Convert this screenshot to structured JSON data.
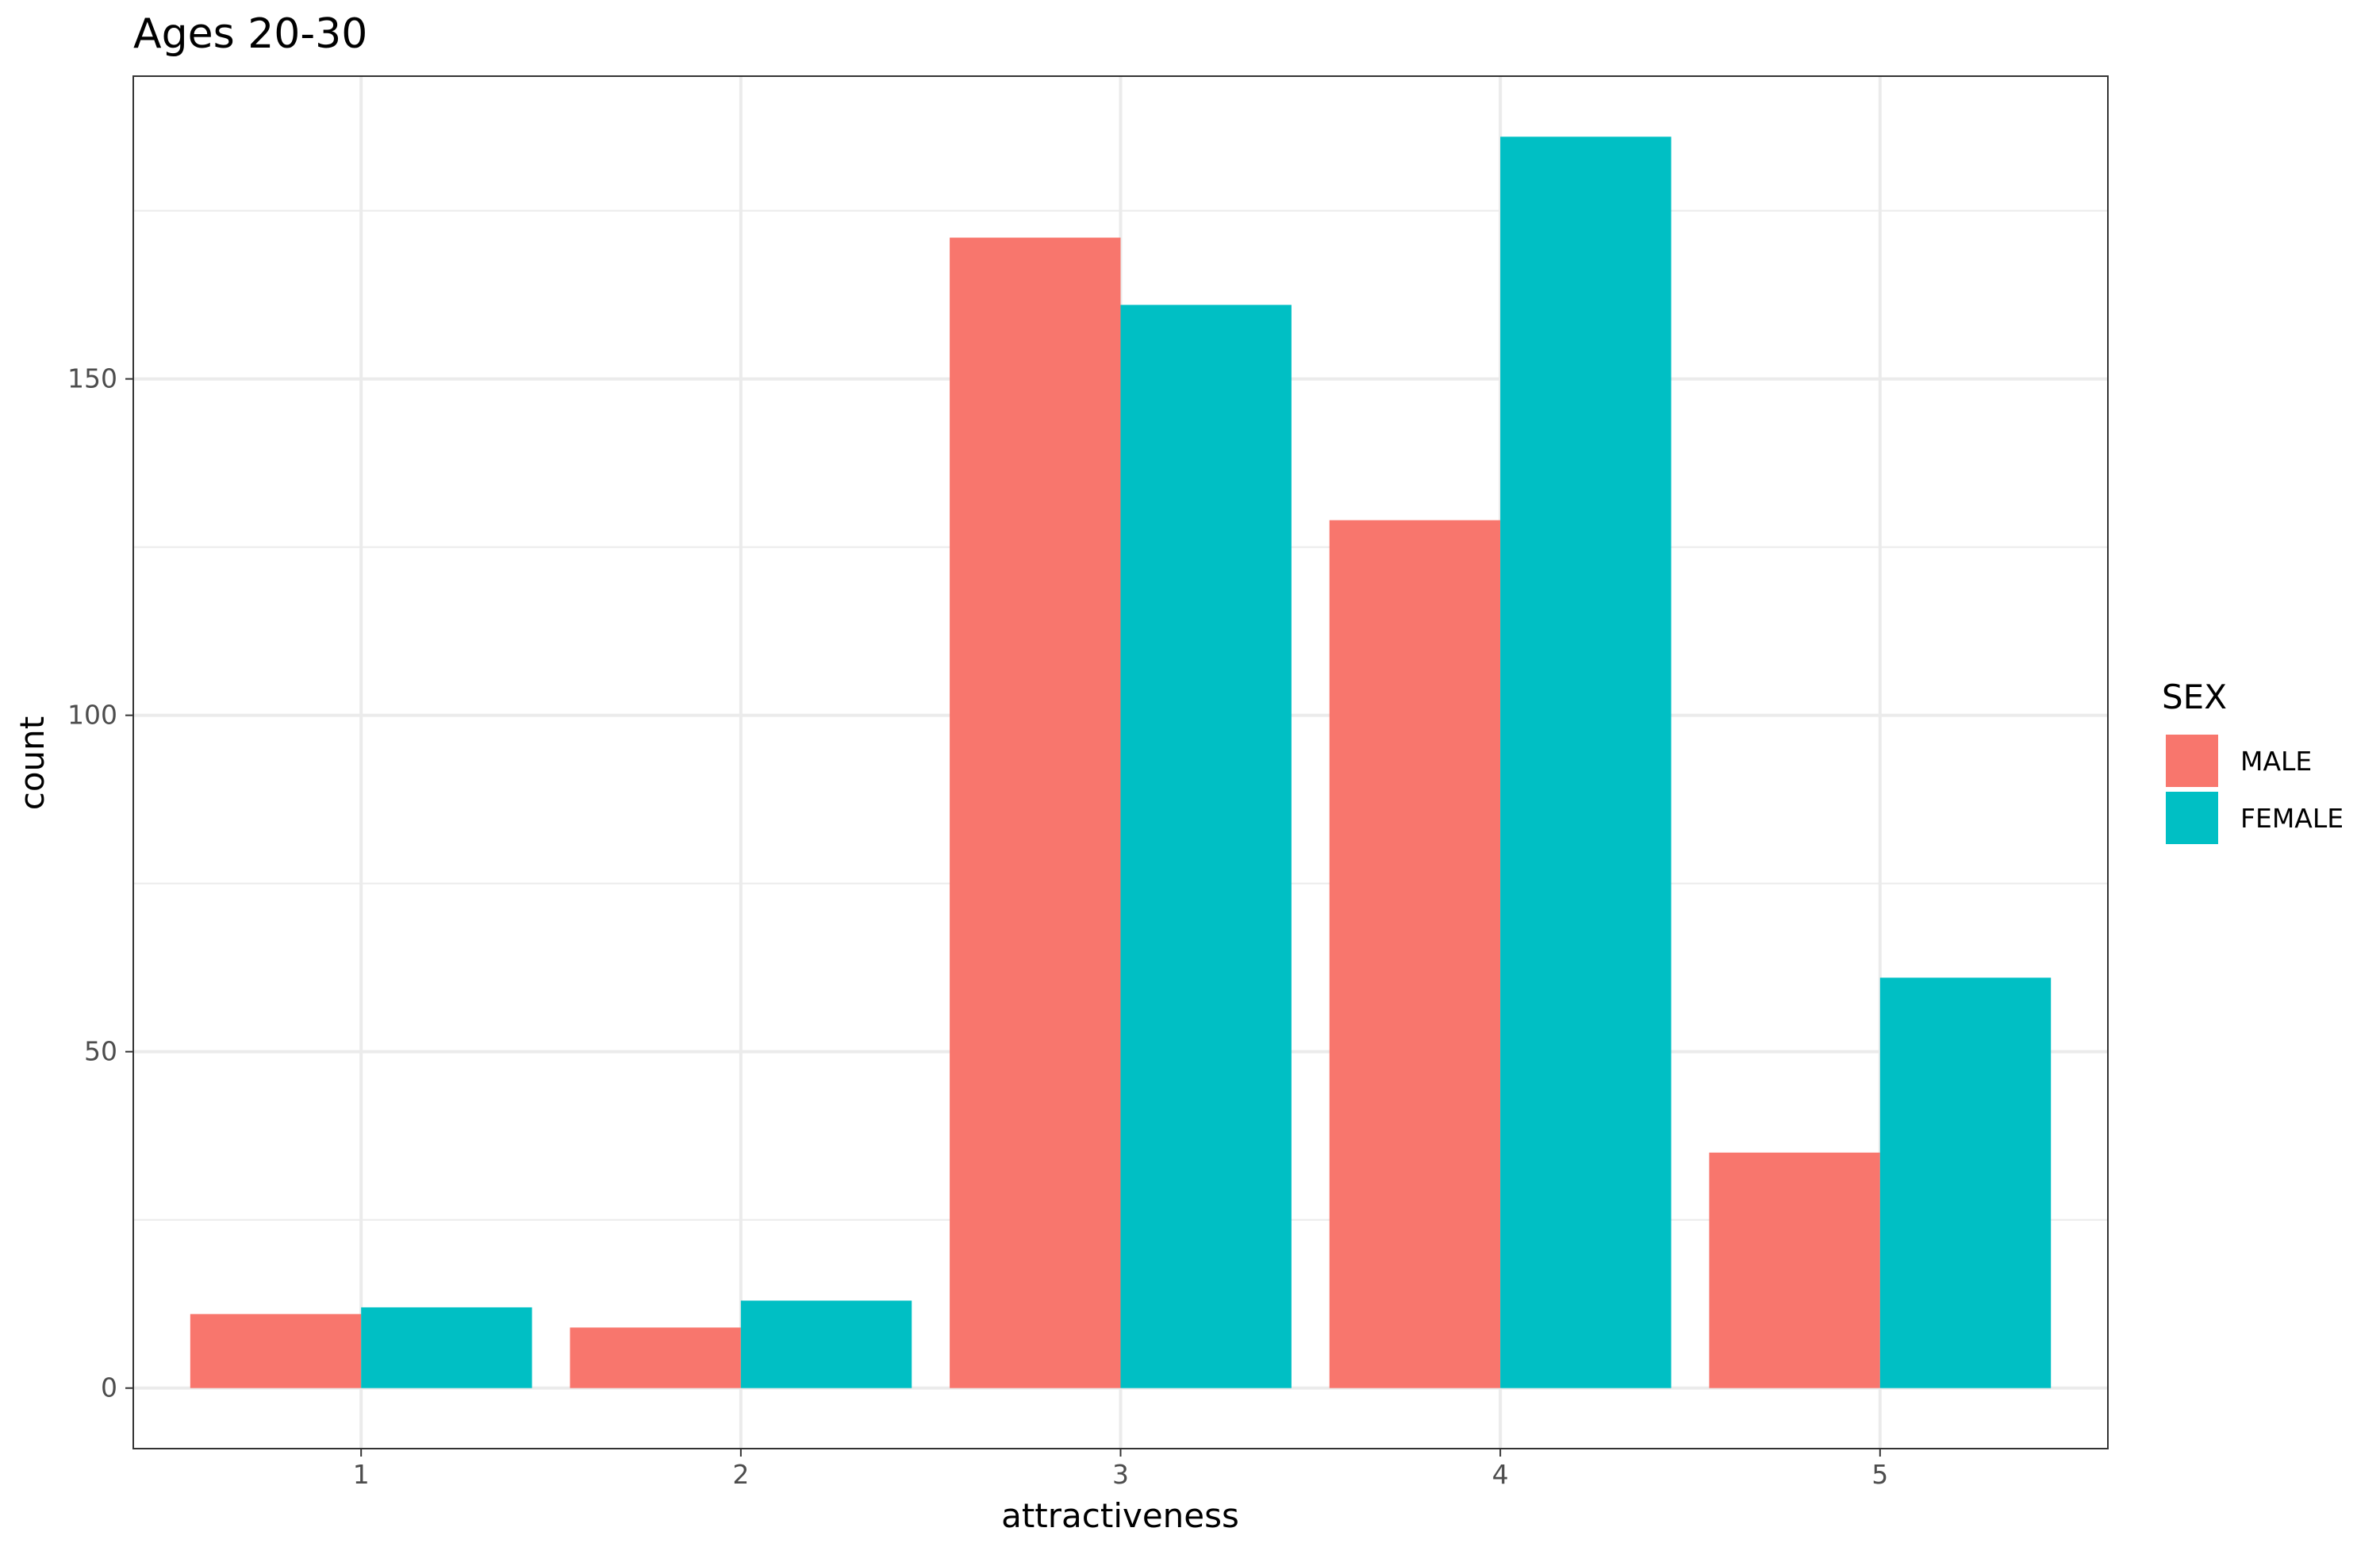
{
  "chart_data": {
    "type": "bar",
    "title": "Ages 20-30",
    "xlabel": "attractiveness",
    "ylabel": "count",
    "categories": [
      "1",
      "2",
      "3",
      "4",
      "5"
    ],
    "series": [
      {
        "name": "MALE",
        "color": "#F8766D",
        "values": [
          11,
          9,
          171,
          129,
          35
        ]
      },
      {
        "name": "FEMALE",
        "color": "#00BFC4",
        "values": [
          12,
          13,
          161,
          186,
          61
        ]
      }
    ],
    "ylim": [
      -9,
      195
    ],
    "yticks": [
      0,
      50,
      100,
      150
    ],
    "ytick_labels": [
      "0",
      "50",
      "100",
      "150"
    ],
    "legend": {
      "title": "SEX",
      "position": "right"
    },
    "grid": true
  }
}
